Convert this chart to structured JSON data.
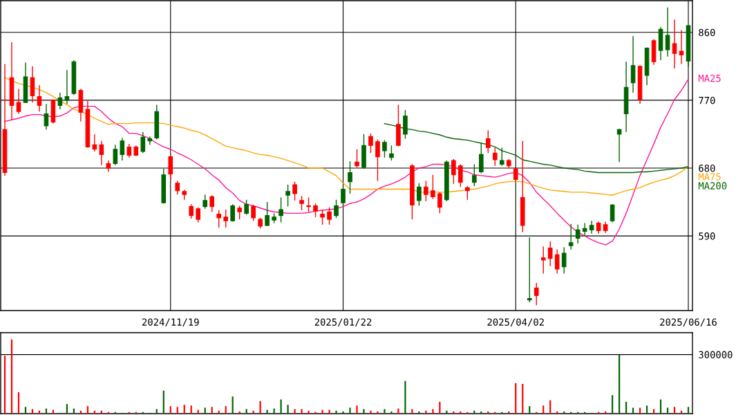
{
  "chart_data": [
    {
      "type": "candlestick",
      "categories": [
        null,
        null,
        null,
        null,
        null,
        null,
        null,
        null,
        null,
        null,
        null,
        null,
        null,
        null,
        null,
        null,
        null,
        null,
        null,
        null,
        null,
        null,
        null,
        null,
        "2024/11/19",
        null,
        null,
        null,
        null,
        null,
        null,
        null,
        null,
        null,
        null,
        null,
        null,
        null,
        null,
        null,
        null,
        null,
        null,
        null,
        null,
        null,
        null,
        null,
        null,
        "2025/01/22",
        null,
        null,
        null,
        null,
        null,
        null,
        null,
        null,
        null,
        null,
        null,
        null,
        null,
        null,
        null,
        null,
        null,
        null,
        null,
        null,
        null,
        null,
        null,
        null,
        "2025/04/02",
        null,
        null,
        null,
        null,
        null,
        null,
        null,
        null,
        null,
        null,
        null,
        null,
        null,
        null,
        null,
        null,
        null,
        null,
        null,
        null,
        null,
        null,
        null,
        null,
        "2025/06/16"
      ],
      "ohlc": [
        [
          731,
          818,
          670,
          674
        ],
        [
          800,
          847,
          744,
          763
        ],
        [
          767,
          785,
          752,
          755
        ],
        [
          767,
          820,
          767,
          801
        ],
        [
          800,
          815,
          767,
          776
        ],
        [
          775,
          790,
          755,
          763
        ],
        [
          736,
          765,
          731,
          752
        ],
        [
          770,
          771,
          739,
          741
        ],
        [
          763,
          780,
          758,
          773
        ],
        [
          770,
          810,
          765,
          775
        ],
        [
          779,
          823,
          777,
          821
        ],
        [
          783,
          785,
          742,
          754
        ],
        [
          758,
          769,
          707,
          708
        ],
        [
          711,
          725,
          702,
          705
        ],
        [
          711,
          716,
          684,
          698
        ],
        [
          686,
          690,
          675,
          680
        ],
        [
          686,
          711,
          684,
          705
        ],
        [
          698,
          720,
          690,
          716
        ],
        [
          708,
          712,
          694,
          697
        ],
        [
          708,
          710,
          696,
          697
        ],
        [
          702,
          728,
          700,
          721
        ],
        [
          716,
          722,
          711,
          719
        ],
        [
          720,
          764,
          718,
          755
        ],
        [
          634,
          679,
          633,
          671
        ],
        [
          695,
          698,
          664,
          672
        ],
        [
          660,
          663,
          645,
          650
        ],
        [
          649,
          651,
          638,
          645
        ],
        [
          629,
          632,
          613,
          617
        ],
        [
          626,
          628,
          608,
          612
        ],
        [
          629,
          645,
          626,
          637
        ],
        [
          642,
          644,
          622,
          629
        ],
        [
          619,
          624,
          601,
          614
        ],
        [
          615,
          625,
          601,
          610
        ],
        [
          610,
          632,
          609,
          630
        ],
        [
          627,
          630,
          612,
          622
        ],
        [
          620,
          638,
          618,
          632
        ],
        [
          629,
          631,
          610,
          614
        ],
        [
          612,
          614,
          600,
          603
        ],
        [
          604,
          635,
          603,
          617
        ],
        [
          611,
          620,
          607,
          615
        ],
        [
          617,
          641,
          608,
          625
        ],
        [
          644,
          658,
          629,
          649
        ],
        [
          658,
          662,
          637,
          646
        ],
        [
          637,
          643,
          624,
          633
        ],
        [
          630,
          641,
          622,
          629
        ],
        [
          630,
          633,
          615,
          623
        ],
        [
          619,
          625,
          605,
          615
        ],
        [
          622,
          628,
          605,
          612
        ],
        [
          617,
          638,
          614,
          630
        ],
        [
          634,
          656,
          630,
          652
        ],
        [
          662,
          689,
          646,
          674
        ],
        [
          688,
          705,
          681,
          683
        ],
        [
          681,
          725,
          679,
          710
        ],
        [
          722,
          726,
          700,
          710
        ],
        [
          715,
          718,
          663,
          695
        ],
        [
          703,
          717,
          694,
          714
        ],
        [
          694,
          710,
          690,
          699
        ],
        [
          738,
          764,
          709,
          710
        ],
        [
          725,
          757,
          719,
          749
        ],
        [
          683,
          685,
          612,
          631
        ],
        [
          637,
          660,
          630,
          655
        ],
        [
          655,
          663,
          636,
          645
        ],
        [
          650,
          671,
          639,
          642
        ],
        [
          646,
          648,
          620,
          628
        ],
        [
          638,
          690,
          636,
          688
        ],
        [
          690,
          692,
          659,
          671
        ],
        [
          683,
          685,
          655,
          661
        ],
        [
          654,
          656,
          638,
          650
        ],
        [
          661,
          685,
          656,
          670
        ],
        [
          675,
          713,
          673,
          698
        ],
        [
          719,
          730,
          700,
          707
        ],
        [
          700,
          707,
          683,
          691
        ],
        [
          685,
          707,
          683,
          690
        ],
        [
          690,
          692,
          680,
          683
        ],
        [
          679,
          680,
          662,
          665
        ],
        [
          641,
          716,
          595,
          604
        ],
        [
          505,
          588,
          502,
          507
        ],
        [
          521,
          528,
          498,
          511
        ],
        [
          561,
          576,
          540,
          558
        ],
        [
          574,
          583,
          550,
          560
        ],
        [
          565,
          572,
          540,
          546
        ],
        [
          549,
          575,
          540,
          567
        ],
        [
          577,
          606,
          572,
          581
        ],
        [
          587,
          605,
          580,
          598
        ],
        [
          596,
          607,
          590,
          600
        ],
        [
          598,
          610,
          593,
          604
        ],
        [
          607,
          609,
          593,
          597
        ],
        [
          605,
          609,
          594,
          597
        ],
        [
          610,
          632,
          608,
          631
        ],
        [
          725,
          732,
          688,
          731
        ],
        [
          752,
          821,
          728,
          787
        ],
        [
          793,
          855,
          780,
          816
        ],
        [
          815,
          816,
          765,
          771
        ],
        [
          803,
          840,
          790,
          839
        ],
        [
          849,
          851,
          817,
          821
        ],
        [
          836,
          867,
          823,
          864
        ],
        [
          837,
          893,
          828,
          856
        ],
        [
          845,
          877,
          812,
          832
        ],
        [
          835,
          863,
          818,
          830
        ],
        [
          822,
          869,
          815,
          869
        ]
      ],
      "colors": [
        "#ff0000",
        "#ff0000",
        "#ff0000",
        "#006400",
        "#ff0000",
        "#ff0000",
        "#006400",
        "#ff0000",
        "#006400",
        "#006400",
        "#006400",
        "#ff0000",
        "#ff0000",
        "#ff0000",
        "#ff0000",
        "#ff0000",
        "#006400",
        "#006400",
        "#ff0000",
        "#ff0000",
        "#006400",
        "#006400",
        "#006400",
        "#006400",
        "#ff0000",
        "#ff0000",
        "#ff0000",
        "#ff0000",
        "#ff0000",
        "#006400",
        "#ff0000",
        "#ff0000",
        "#ff0000",
        "#006400",
        "#ff0000",
        "#006400",
        "#ff0000",
        "#ff0000",
        "#006400",
        "#006400",
        "#006400",
        "#006400",
        "#ff0000",
        "#ff0000",
        "#ff0000",
        "#ff0000",
        "#ff0000",
        "#ff0000",
        "#006400",
        "#006400",
        "#006400",
        "#ff0000",
        "#006400",
        "#ff0000",
        "#ff0000",
        "#006400",
        "#006400",
        "#ff0000",
        "#006400",
        "#ff0000",
        "#006400",
        "#ff0000",
        "#ff0000",
        "#ff0000",
        "#006400",
        "#ff0000",
        "#ff0000",
        "#ff0000",
        "#006400",
        "#006400",
        "#ff0000",
        "#ff0000",
        "#006400",
        "#ff0000",
        "#ff0000",
        "#ff0000",
        "#006400",
        "#ff0000",
        "#ff0000",
        "#ff0000",
        "#ff0000",
        "#006400",
        "#006400",
        "#006400",
        "#006400",
        "#006400",
        "#ff0000",
        "#ff0000",
        "#006400",
        "#006400",
        "#006400",
        "#006400",
        "#ff0000",
        "#006400",
        "#ff0000",
        "#006400",
        "#006400",
        "#ff0000",
        "#ff0000",
        "#006400"
      ],
      "series": [
        {
          "name": "MA25",
          "type": "line",
          "color": "#ff1493",
          "values": [
            742,
            744,
            746,
            749,
            751,
            751,
            749,
            748,
            749,
            753,
            760,
            762,
            762,
            762,
            755,
            746,
            739,
            735,
            726,
            726,
            723,
            719,
            713,
            708,
            705,
            700,
            696,
            691,
            685,
            679,
            671,
            664,
            654,
            647,
            637,
            632,
            630,
            627,
            624,
            622,
            621,
            620,
            620,
            620,
            621,
            623,
            624,
            625,
            626,
            629,
            633,
            635,
            639,
            645,
            652,
            656,
            659,
            663,
            668,
            675,
            680,
            682,
            685,
            685,
            684,
            682,
            677,
            675,
            671,
            670,
            669,
            668,
            670,
            673,
            674,
            670,
            661,
            648,
            639,
            630,
            620,
            611,
            602,
            595,
            590,
            585,
            581,
            578,
            583,
            599,
            620,
            645,
            670,
            691,
            712,
            734,
            752,
            771,
            783,
            798
          ]
        },
        {
          "name": "MA75",
          "type": "line",
          "color": "#ffa500",
          "values": [
            800,
            796,
            792,
            790,
            787,
            784,
            780,
            775,
            769,
            764,
            758,
            755,
            751,
            746,
            742,
            738,
            739,
            739,
            739,
            740,
            740,
            740,
            740,
            739,
            737,
            735,
            733,
            730,
            728,
            724,
            719,
            714,
            709,
            707,
            705,
            703,
            700,
            698,
            697,
            695,
            693,
            690,
            687,
            684,
            680,
            680,
            680,
            675,
            670,
            660,
            652,
            652,
            652,
            652,
            652,
            652,
            652,
            652,
            652,
            652,
            648,
            648,
            648,
            648,
            648,
            649,
            650,
            651,
            652,
            654,
            656,
            659,
            661,
            662,
            662,
            662,
            659,
            656,
            653,
            651,
            650,
            649,
            648,
            648,
            648,
            647,
            646,
            645,
            644,
            647,
            650,
            652,
            654,
            658,
            661,
            664,
            666,
            670,
            675,
            683
          ]
        },
        {
          "name": "MA200",
          "type": "line",
          "color": "#006400",
          "values": [
            null,
            null,
            null,
            null,
            null,
            null,
            null,
            null,
            null,
            null,
            null,
            null,
            null,
            null,
            null,
            null,
            null,
            null,
            null,
            null,
            null,
            null,
            null,
            null,
            null,
            null,
            null,
            null,
            null,
            null,
            null,
            null,
            null,
            null,
            null,
            null,
            null,
            null,
            null,
            null,
            null,
            null,
            null,
            null,
            null,
            null,
            null,
            null,
            null,
            null,
            null,
            null,
            null,
            null,
            null,
            739,
            737,
            735,
            732,
            731,
            729,
            728,
            726,
            724,
            721,
            719,
            718,
            717,
            715,
            713,
            711,
            708,
            703,
            700,
            697,
            691,
            689,
            687,
            685,
            684,
            682,
            680,
            679,
            678,
            676,
            675,
            674,
            674,
            674,
            674,
            674,
            674,
            675,
            675,
            676,
            677,
            678,
            679,
            680,
            682
          ]
        }
      ],
      "ylim": [
        491,
        902
      ],
      "yticks": [
        590,
        680,
        770,
        860
      ],
      "grid": true
    },
    {
      "type": "bar",
      "categories": [
        null,
        null,
        null,
        null,
        null,
        null,
        null,
        null,
        null,
        null,
        null,
        null,
        null,
        null,
        null,
        null,
        null,
        null,
        null,
        null,
        null,
        null,
        null,
        null,
        null,
        null,
        null,
        null,
        null,
        null,
        null,
        null,
        null,
        null,
        null,
        null,
        null,
        null,
        null,
        null,
        null,
        null,
        null,
        null,
        null,
        null,
        null,
        null,
        null,
        null,
        null,
        null,
        null,
        null,
        null,
        null,
        null,
        null,
        null,
        null,
        null,
        null,
        null,
        null,
        null,
        null,
        null,
        null,
        null,
        null,
        null,
        null,
        null,
        null,
        null,
        null,
        null,
        null,
        null,
        null,
        null,
        null,
        null,
        null,
        null,
        null,
        null,
        null,
        null,
        null,
        null,
        null,
        null,
        null,
        null,
        null,
        null,
        null,
        null,
        null
      ],
      "values": [
        294000,
        377000,
        109000,
        34000,
        23000,
        15000,
        26000,
        19000,
        4000,
        49000,
        26000,
        15000,
        38000,
        15000,
        15000,
        8000,
        8000,
        4000,
        8000,
        8000,
        8000,
        4000,
        23000,
        117000,
        38000,
        34000,
        45000,
        41000,
        19000,
        30000,
        34000,
        15000,
        38000,
        87000,
        11000,
        23000,
        15000,
        64000,
        19000,
        26000,
        72000,
        45000,
        23000,
        23000,
        15000,
        8000,
        19000,
        19000,
        15000,
        11000,
        30000,
        41000,
        23000,
        15000,
        11000,
        23000,
        11000,
        26000,
        166000,
        23000,
        11000,
        15000,
        23000,
        60000,
        15000,
        11000,
        11000,
        8000,
        15000,
        11000,
        11000,
        8000,
        8000,
        11000,
        155000,
        151000,
        38000,
        8000,
        41000,
        68000,
        11000,
        11000,
        8000,
        8000,
        8000,
        4000,
        8000,
        11000,
        94000,
        300000,
        60000,
        30000,
        30000,
        41000,
        23000,
        72000,
        30000,
        34000,
        15000,
        34000
      ],
      "colors": [
        "#ff0000",
        "#ff0000",
        "#ff0000",
        "#006400",
        "#ff0000",
        "#ff0000",
        "#006400",
        "#ff0000",
        "#006400",
        "#006400",
        "#006400",
        "#ff0000",
        "#ff0000",
        "#ff0000",
        "#ff0000",
        "#ff0000",
        "#006400",
        "#006400",
        "#ff0000",
        "#ff0000",
        "#006400",
        "#006400",
        "#006400",
        "#006400",
        "#ff0000",
        "#ff0000",
        "#ff0000",
        "#ff0000",
        "#ff0000",
        "#006400",
        "#ff0000",
        "#ff0000",
        "#ff0000",
        "#006400",
        "#ff0000",
        "#006400",
        "#ff0000",
        "#ff0000",
        "#006400",
        "#006400",
        "#006400",
        "#006400",
        "#ff0000",
        "#ff0000",
        "#ff0000",
        "#ff0000",
        "#ff0000",
        "#ff0000",
        "#006400",
        "#006400",
        "#006400",
        "#ff0000",
        "#006400",
        "#ff0000",
        "#ff0000",
        "#006400",
        "#006400",
        "#ff0000",
        "#006400",
        "#ff0000",
        "#006400",
        "#ff0000",
        "#ff0000",
        "#ff0000",
        "#006400",
        "#ff0000",
        "#ff0000",
        "#ff0000",
        "#006400",
        "#006400",
        "#ff0000",
        "#ff0000",
        "#006400",
        "#ff0000",
        "#ff0000",
        "#ff0000",
        "#006400",
        "#ff0000",
        "#ff0000",
        "#ff0000",
        "#ff0000",
        "#006400",
        "#006400",
        "#006400",
        "#006400",
        "#006400",
        "#ff0000",
        "#ff0000",
        "#006400",
        "#006400",
        "#006400",
        "#006400",
        "#ff0000",
        "#006400",
        "#ff0000",
        "#006400",
        "#006400",
        "#ff0000",
        "#ff0000",
        "#006400"
      ],
      "ylim": [
        0,
        411000
      ],
      "yticks": [
        300000
      ],
      "grid": "y",
      "tick_labels": "y"
    }
  ]
}
